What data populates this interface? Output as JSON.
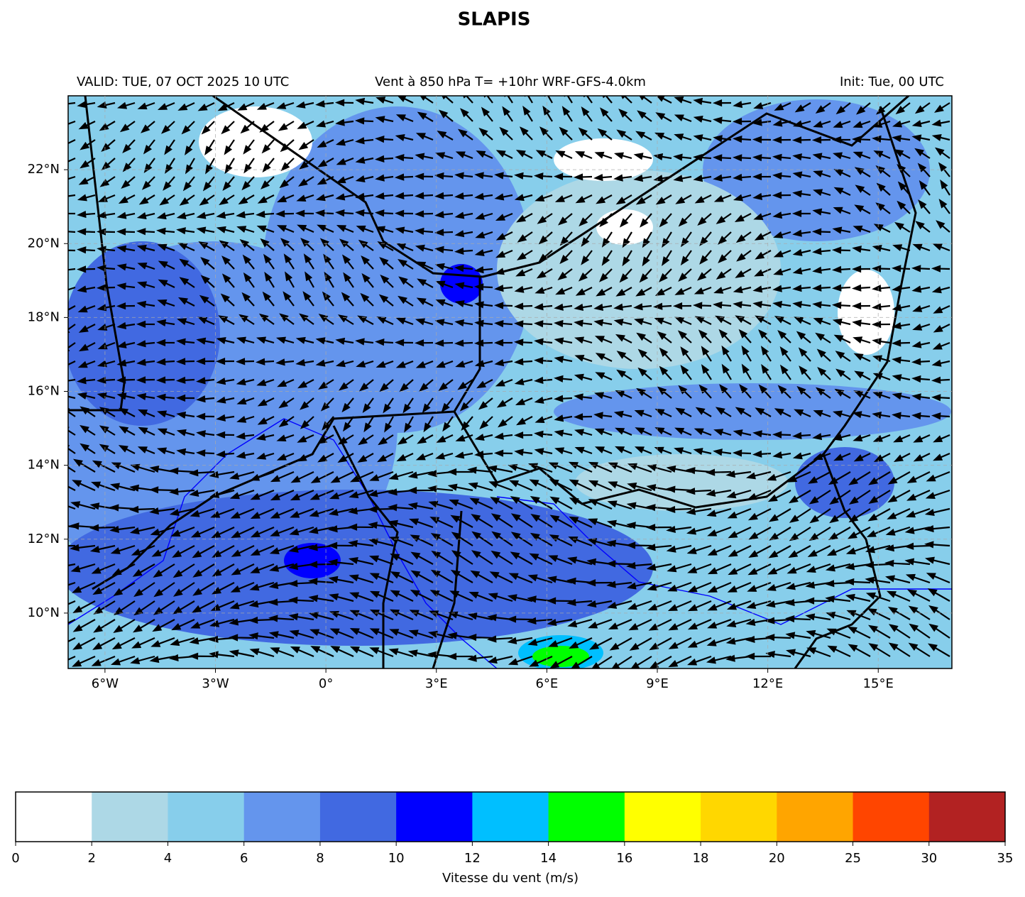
{
  "header": {
    "title": "SLAPIS",
    "left": "VALID: TUE, 07 OCT 2025 10 UTC",
    "center": "Vent à 850 hPa T= +10hr  WRF-GFS-4.0km",
    "right": "Init: Tue, 00 UTC"
  },
  "map": {
    "lonlim": [
      -7,
      17
    ],
    "latlim": [
      8.5,
      24
    ],
    "lon_ticks": [
      {
        "value": -6,
        "label": "6°W"
      },
      {
        "value": -3,
        "label": "3°W"
      },
      {
        "value": 0,
        "label": "0°"
      },
      {
        "value": 3,
        "label": "3°E"
      },
      {
        "value": 6,
        "label": "6°E"
      },
      {
        "value": 9,
        "label": "9°E"
      },
      {
        "value": 12,
        "label": "12°E"
      },
      {
        "value": 15,
        "label": "15°E"
      }
    ],
    "lat_ticks": [
      {
        "value": 10,
        "label": "10°N"
      },
      {
        "value": 12,
        "label": "12°N"
      },
      {
        "value": 14,
        "label": "14°N"
      },
      {
        "value": 16,
        "label": "16°N"
      },
      {
        "value": 18,
        "label": "18°N"
      },
      {
        "value": 20,
        "label": "20°N"
      },
      {
        "value": 22,
        "label": "22°N"
      }
    ]
  },
  "colorbar": {
    "levels": [
      0,
      2,
      4,
      6,
      8,
      10,
      12,
      14,
      16,
      18,
      20,
      25,
      30,
      35
    ],
    "colors": [
      "#ffffff",
      "#add8e6",
      "#87ceeb",
      "#6495ed",
      "#4169e1",
      "#0000ff",
      "#00bfff",
      "#00ff00",
      "#ffff00",
      "#ffd700",
      "#ffa500",
      "#ff4500",
      "#b22222"
    ],
    "label": "Vitesse du vent (m/s)"
  }
}
